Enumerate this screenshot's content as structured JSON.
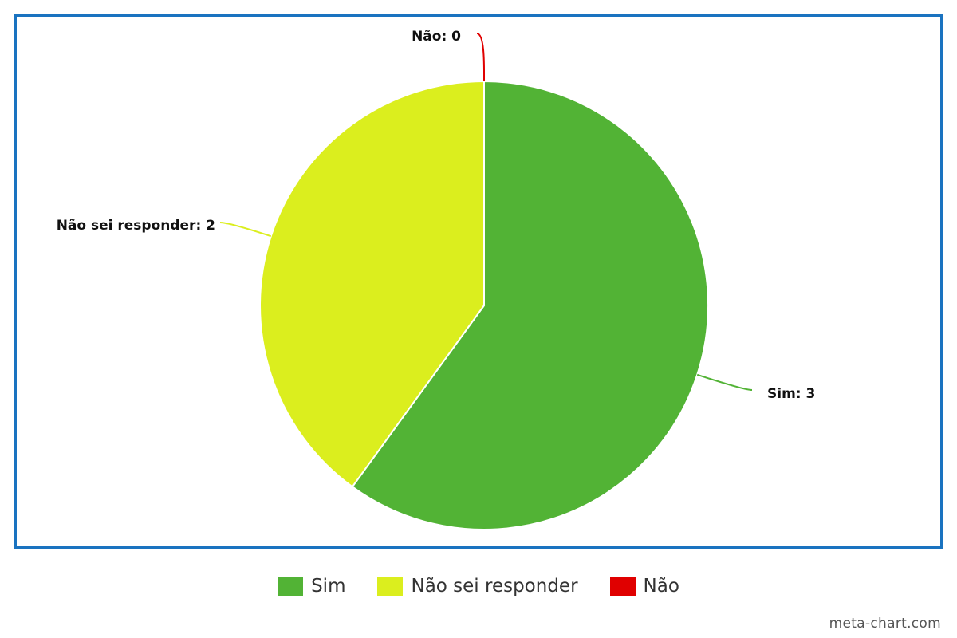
{
  "chart_data": {
    "type": "pie",
    "slices": [
      {
        "label": "Sim",
        "value": 3,
        "color": "#52b335",
        "data_label": "Sim: 3"
      },
      {
        "label": "Não sei responder",
        "value": 2,
        "color": "#dbee1e",
        "data_label": "Não sei responder: 2"
      },
      {
        "label": "Não",
        "value": 0,
        "color": "#e00000",
        "data_label": "Não: 0"
      }
    ],
    "legend_position": "bottom-center",
    "border_color": "#1a73c0"
  },
  "legend": {
    "items": [
      {
        "label": "Sim",
        "color": "#52b335"
      },
      {
        "label": "Não sei responder",
        "color": "#dbee1e"
      },
      {
        "label": "Não",
        "color": "#e00000"
      }
    ]
  },
  "watermark": "meta-chart.com"
}
